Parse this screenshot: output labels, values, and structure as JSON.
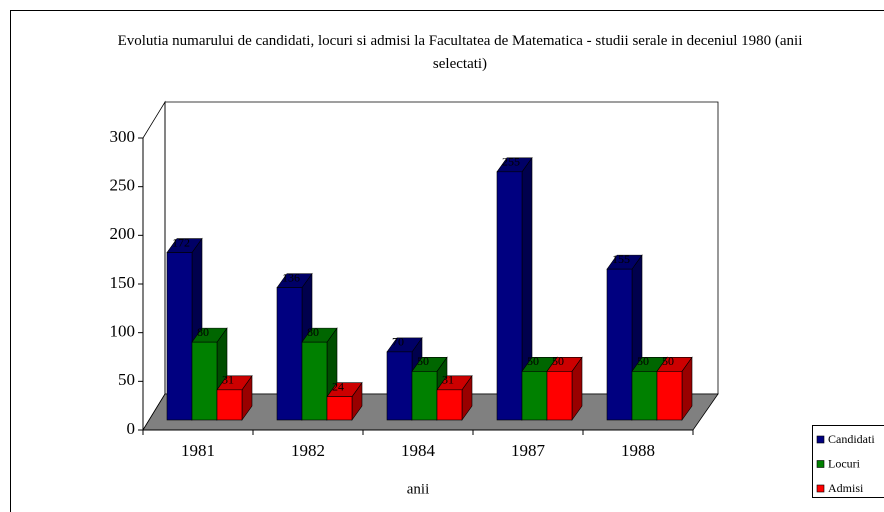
{
  "chart_data": {
    "type": "bar3d",
    "title": "Evolutia numarului de candidati, locuri si admisi la Facultatea de Matematica - studii serale in deceniul 1980 (anii selectati)",
    "xlabel": "anii",
    "categories": [
      "1981",
      "1982",
      "1984",
      "1987",
      "1988"
    ],
    "series": [
      {
        "name": "Candidati",
        "color": "#000080",
        "values": [
          172,
          136,
          70,
          255,
          155
        ]
      },
      {
        "name": "Locuri",
        "color": "#008000",
        "values": [
          80,
          80,
          50,
          50,
          50
        ]
      },
      {
        "name": "Admisi",
        "color": "#ff0000",
        "values": [
          31,
          24,
          31,
          50,
          50
        ]
      }
    ],
    "ylim": [
      0,
      300
    ],
    "yticks": [
      0,
      50,
      100,
      150,
      200,
      250,
      300
    ],
    "legend": "right",
    "floor_color": "#808080"
  }
}
